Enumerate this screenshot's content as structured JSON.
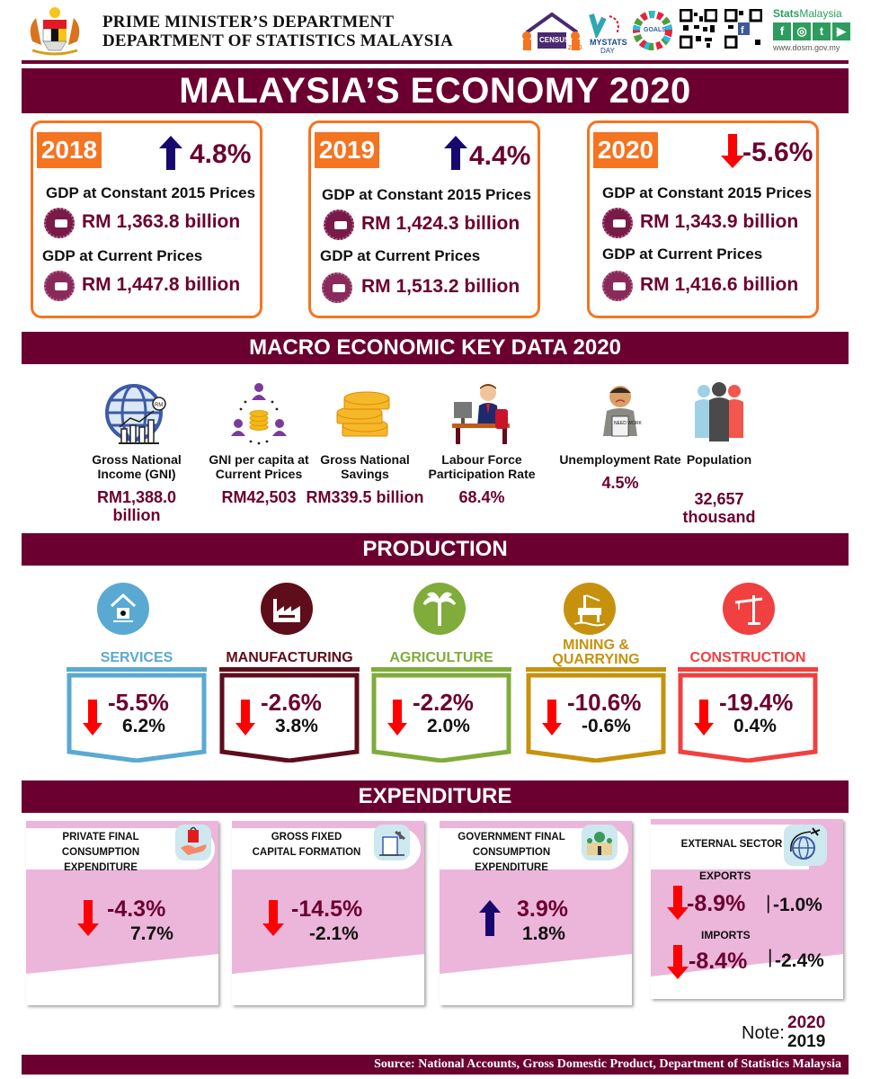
{
  "header": {
    "agency_line1": "PRIME MINISTER’S DEPARTMENT",
    "agency_line2": "DEPARTMENT OF STATISTICS MALAYSIA",
    "logos": {
      "census_text": "CENSUS",
      "census_year": "2020",
      "mystats_line1": "MYSTATS",
      "mystats_line2": "DAY",
      "sdg_text": "GOALS",
      "stats_brand_bold": "Stats",
      "stats_brand_rest": "Malaysia",
      "social": [
        "f",
        "◎",
        "t",
        "▶"
      ],
      "website": "www.dosm.gov.my"
    }
  },
  "title": "MALAYSIA’S ECONOMY 2020",
  "gdp_cards": [
    {
      "year": "2018",
      "growth": "4.8%",
      "direction": "up",
      "const_label": "GDP at Constant 2015 Prices",
      "const_value": "RM 1,363.8 billion",
      "curr_label": "GDP at Current Prices",
      "curr_value": "RM 1,447.8 billion"
    },
    {
      "year": "2019",
      "growth": "4.4%",
      "direction": "up",
      "const_label": "GDP at Constant 2015 Prices",
      "const_value": "RM 1,424.3 billion",
      "curr_label": "GDP at Current Prices",
      "curr_value": "RM 1,513.2 billion"
    },
    {
      "year": "2020",
      "growth": "-5.6%",
      "direction": "down",
      "const_label": "GDP at Constant 2015 Prices",
      "const_value": "RM 1,343.9 billion",
      "curr_label": "GDP at Current Prices",
      "curr_value": "RM 1,416.6 billion"
    }
  ],
  "macro": {
    "title": "MACRO ECONOMIC KEY DATA 2020",
    "items": [
      {
        "label": "Gross National Income (GNI)",
        "value": "RM1,388.0 billion",
        "icon": "globe-chart-icon"
      },
      {
        "label": "GNI per capita at Current Prices",
        "value": "RM42,503",
        "icon": "people-coins-icon"
      },
      {
        "label": "Gross National Savings",
        "value": "RM339.5 billion",
        "icon": "coin-stack-icon"
      },
      {
        "label": "Labour Force Participation Rate",
        "value": "68.4%",
        "icon": "office-worker-icon"
      },
      {
        "label": "Unemployment Rate",
        "value": "4.5%",
        "icon": "need-work-icon"
      },
      {
        "label": "Population",
        "value": "32,657 thousand",
        "icon": "population-icon"
      }
    ],
    "unemployment_sign": "NEED WORK",
    "gni_badge": "RM"
  },
  "production": {
    "title": "PRODUCTION",
    "sectors": [
      {
        "name": "SERVICES",
        "v2020": "-5.5%",
        "v2019": "6.2%",
        "color": "#5aa9d2"
      },
      {
        "name": "MANUFACTURING",
        "v2020": "-2.6%",
        "v2019": "3.8%",
        "color": "#5e0d1a"
      },
      {
        "name": "AGRICULTURE",
        "v2020": "-2.2%",
        "v2019": "2.0%",
        "color": "#7fac3a"
      },
      {
        "name": "MINING & QUARRYING",
        "v2020": "-10.6%",
        "v2019": "-0.6%",
        "color": "#c6920e"
      },
      {
        "name": "CONSTRUCTION",
        "v2020": "-19.4%",
        "v2019": "0.4%",
        "color": "#f0403f"
      }
    ],
    "mining_line1": "MINING &",
    "mining_line2": "QUARRYING"
  },
  "expenditure": {
    "title": "EXPENDITURE",
    "cards": [
      {
        "title_line1": "PRIVATE FINAL",
        "title_line2": "CONSUMPTION EXPENDITURE",
        "v2020": "-4.3%",
        "v2019": "7.7%",
        "direction": "down"
      },
      {
        "title_line1": "GROSS FIXED",
        "title_line2": "CAPITAL FORMATION",
        "v2020": "-14.5%",
        "v2019": "-2.1%",
        "direction": "down"
      },
      {
        "title_line1": "GOVERNMENT FINAL",
        "title_line2": "CONSUMPTION EXPENDITURE",
        "v2020": "3.9%",
        "v2019": "1.8%",
        "direction": "up"
      }
    ],
    "external": {
      "title": "EXTERNAL SECTOR",
      "exports_label": "EXPORTS",
      "exports_2020": "-8.9%",
      "exports_2019": "-1.0%",
      "imports_label": "IMPORTS",
      "imports_2020": "-8.4%",
      "imports_2019": "-2.4%",
      "separator": "|"
    }
  },
  "note": {
    "label": "Note:",
    "year_current": "2020",
    "year_previous": "2019"
  },
  "source": "Source: National Accounts, Gross Domestic Product, Department of Statistics Malaysia",
  "colors": {
    "maroon": "#6b0030",
    "orange": "#f47421",
    "pink": "#ecb5da",
    "down": "#ff0000",
    "up": "#17086e"
  }
}
